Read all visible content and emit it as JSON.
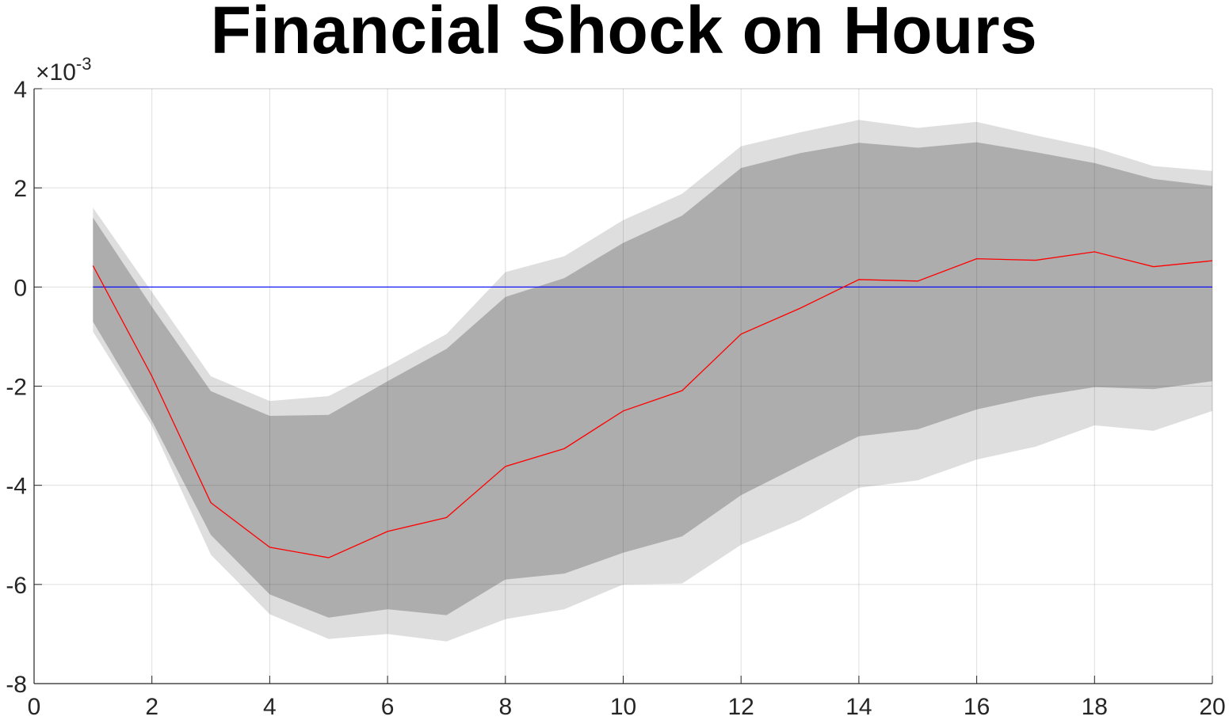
{
  "chart_data": {
    "type": "area",
    "title": "Financial Shock on Hours",
    "xlabel": "",
    "ylabel": "",
    "xlim": [
      0,
      20
    ],
    "ylim": [
      -0.008,
      0.004
    ],
    "x_ticks": [
      "0",
      "2",
      "4",
      "6",
      "8",
      "10",
      "12",
      "14",
      "16",
      "18",
      "20"
    ],
    "y_ticks": [
      "4",
      "2",
      "0",
      "-2",
      "-4",
      "-6",
      "-8"
    ],
    "y_tick_values": [
      4,
      2,
      0,
      -2,
      -4,
      -6,
      -8
    ],
    "x_tick_values": [
      0,
      2,
      4,
      6,
      8,
      10,
      12,
      14,
      16,
      18,
      20
    ],
    "y_multiplier": {
      "times": "×10",
      "exponent": "-3"
    },
    "grid": true,
    "legend": "none",
    "x": [
      1,
      2,
      3,
      4,
      5,
      6,
      7,
      8,
      9,
      10,
      11,
      12,
      13,
      14,
      15,
      16,
      17,
      18,
      19,
      20
    ],
    "series": [
      {
        "role": "outer-band-upper",
        "values": [
          0.0016,
          -0.0001,
          -0.0018,
          -0.0023,
          -0.0022,
          -0.0016,
          -0.00095,
          0.0003,
          0.00062,
          0.00135,
          0.00188,
          0.00284,
          0.00312,
          0.00337,
          0.00321,
          0.00333,
          0.00306,
          0.00281,
          0.00244,
          0.00234
        ]
      },
      {
        "role": "outer-band-lower",
        "values": [
          -0.0009,
          -0.0028,
          -0.0054,
          -0.0066,
          -0.0071,
          -0.007,
          -0.00715,
          -0.0067,
          -0.0065,
          -0.006,
          -0.00598,
          -0.0052,
          -0.0047,
          -0.00405,
          -0.0039,
          -0.00348,
          -0.00322,
          -0.00279,
          -0.0029,
          -0.0025
        ]
      },
      {
        "role": "inner-band-upper",
        "values": [
          0.0014,
          -0.0004,
          -0.0021,
          -0.0026,
          -0.00258,
          -0.0019,
          -0.00125,
          -0.0002,
          0.00018,
          0.00089,
          0.00144,
          0.0024,
          0.0027,
          0.00291,
          0.00281,
          0.00292,
          0.00272,
          0.0025,
          0.00218,
          0.00204
        ]
      },
      {
        "role": "inner-band-lower",
        "values": [
          -0.0007,
          -0.0027,
          -0.005,
          -0.0062,
          -0.00667,
          -0.0065,
          -0.00662,
          -0.0059,
          -0.00578,
          -0.00536,
          -0.00503,
          -0.0042,
          -0.0036,
          -0.00301,
          -0.00287,
          -0.00247,
          -0.00221,
          -0.00202,
          -0.00206,
          -0.0019
        ]
      },
      {
        "role": "median",
        "values": [
          0.00043,
          -0.0018,
          -0.00435,
          -0.00525,
          -0.00546,
          -0.00493,
          -0.00465,
          -0.00362,
          -0.00326,
          -0.0025,
          -0.00209,
          -0.00095,
          -0.00043,
          0.00015,
          0.00012,
          0.00057,
          0.00054,
          0.00071,
          0.00041,
          0.00053
        ]
      },
      {
        "role": "zero-line",
        "values": [
          0,
          0,
          0,
          0,
          0,
          0,
          0,
          0,
          0,
          0,
          0,
          0,
          0,
          0,
          0,
          0,
          0,
          0,
          0,
          0
        ]
      }
    ],
    "colors": {
      "outer_band": "#dedede",
      "inner_band": "#adadad",
      "median": "#ff0000",
      "zero_line": "#0000ff",
      "grid": "#dcdcdc",
      "axis": "#262626"
    }
  }
}
